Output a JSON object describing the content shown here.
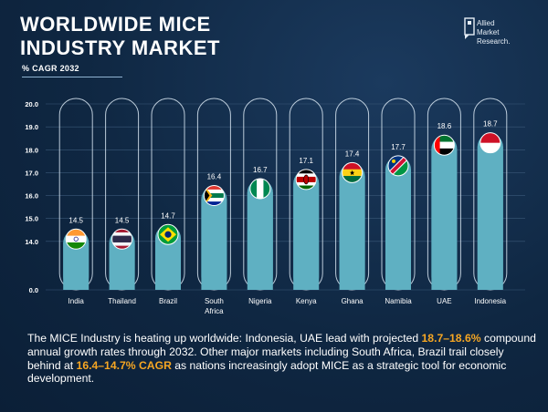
{
  "header": {
    "title_line1": "WORLDWIDE MICE",
    "title_line2": "INDUSTRY MARKET",
    "subtitle": "% CAGR 2032"
  },
  "logo": {
    "line1": "Allied",
    "line2": "Market",
    "line3": "Research."
  },
  "chart_data": {
    "type": "bar",
    "categories": [
      "India",
      "Thailand",
      "Brazil",
      "South Africa",
      "Nigeria",
      "Kenya",
      "Ghana",
      "Namibia",
      "UAE",
      "Indonesia"
    ],
    "values": [
      14.5,
      14.5,
      14.7,
      16.4,
      16.7,
      17.1,
      17.4,
      17.7,
      18.6,
      18.7
    ],
    "data_labels": [
      "14.5",
      "14.5",
      "14.7",
      "16.4",
      "16.7",
      "17.1",
      "17.4",
      "17.7",
      "18.6",
      "18.7"
    ],
    "yticks": [
      "0.0",
      "14.0",
      "15.0",
      "16.0",
      "17.0",
      "18.0",
      "19.0",
      "20.0"
    ],
    "ylim": [
      0,
      20
    ],
    "axis_break": [
      0,
      13
    ],
    "bar_color": "#5fb0c2",
    "flags": [
      "india-flag-icon",
      "thailand-flag-icon",
      "brazil-flag-icon",
      "south-africa-flag-icon",
      "nigeria-flag-icon",
      "kenya-flag-icon",
      "ghana-flag-icon",
      "namibia-flag-icon",
      "uae-flag-icon",
      "indonesia-flag-icon"
    ],
    "title": "",
    "xlabel": "",
    "ylabel": ""
  },
  "caption": {
    "part1": "The MICE Industry is heating up worldwide: Indonesia, UAE lead with projected ",
    "hl1": "18.7–18.6%",
    "part2": " compound annual growth rates through 2032. Other major markets including South Africa, Brazil trail closely behind at ",
    "hl2": "16.4–14.7% CAGR",
    "part3": " as nations increasingly adopt MICE as a strategic tool for economic development."
  },
  "colors": {
    "background": "#0f2742",
    "highlight": "#f5a623",
    "bar": "#5fb0c2"
  }
}
